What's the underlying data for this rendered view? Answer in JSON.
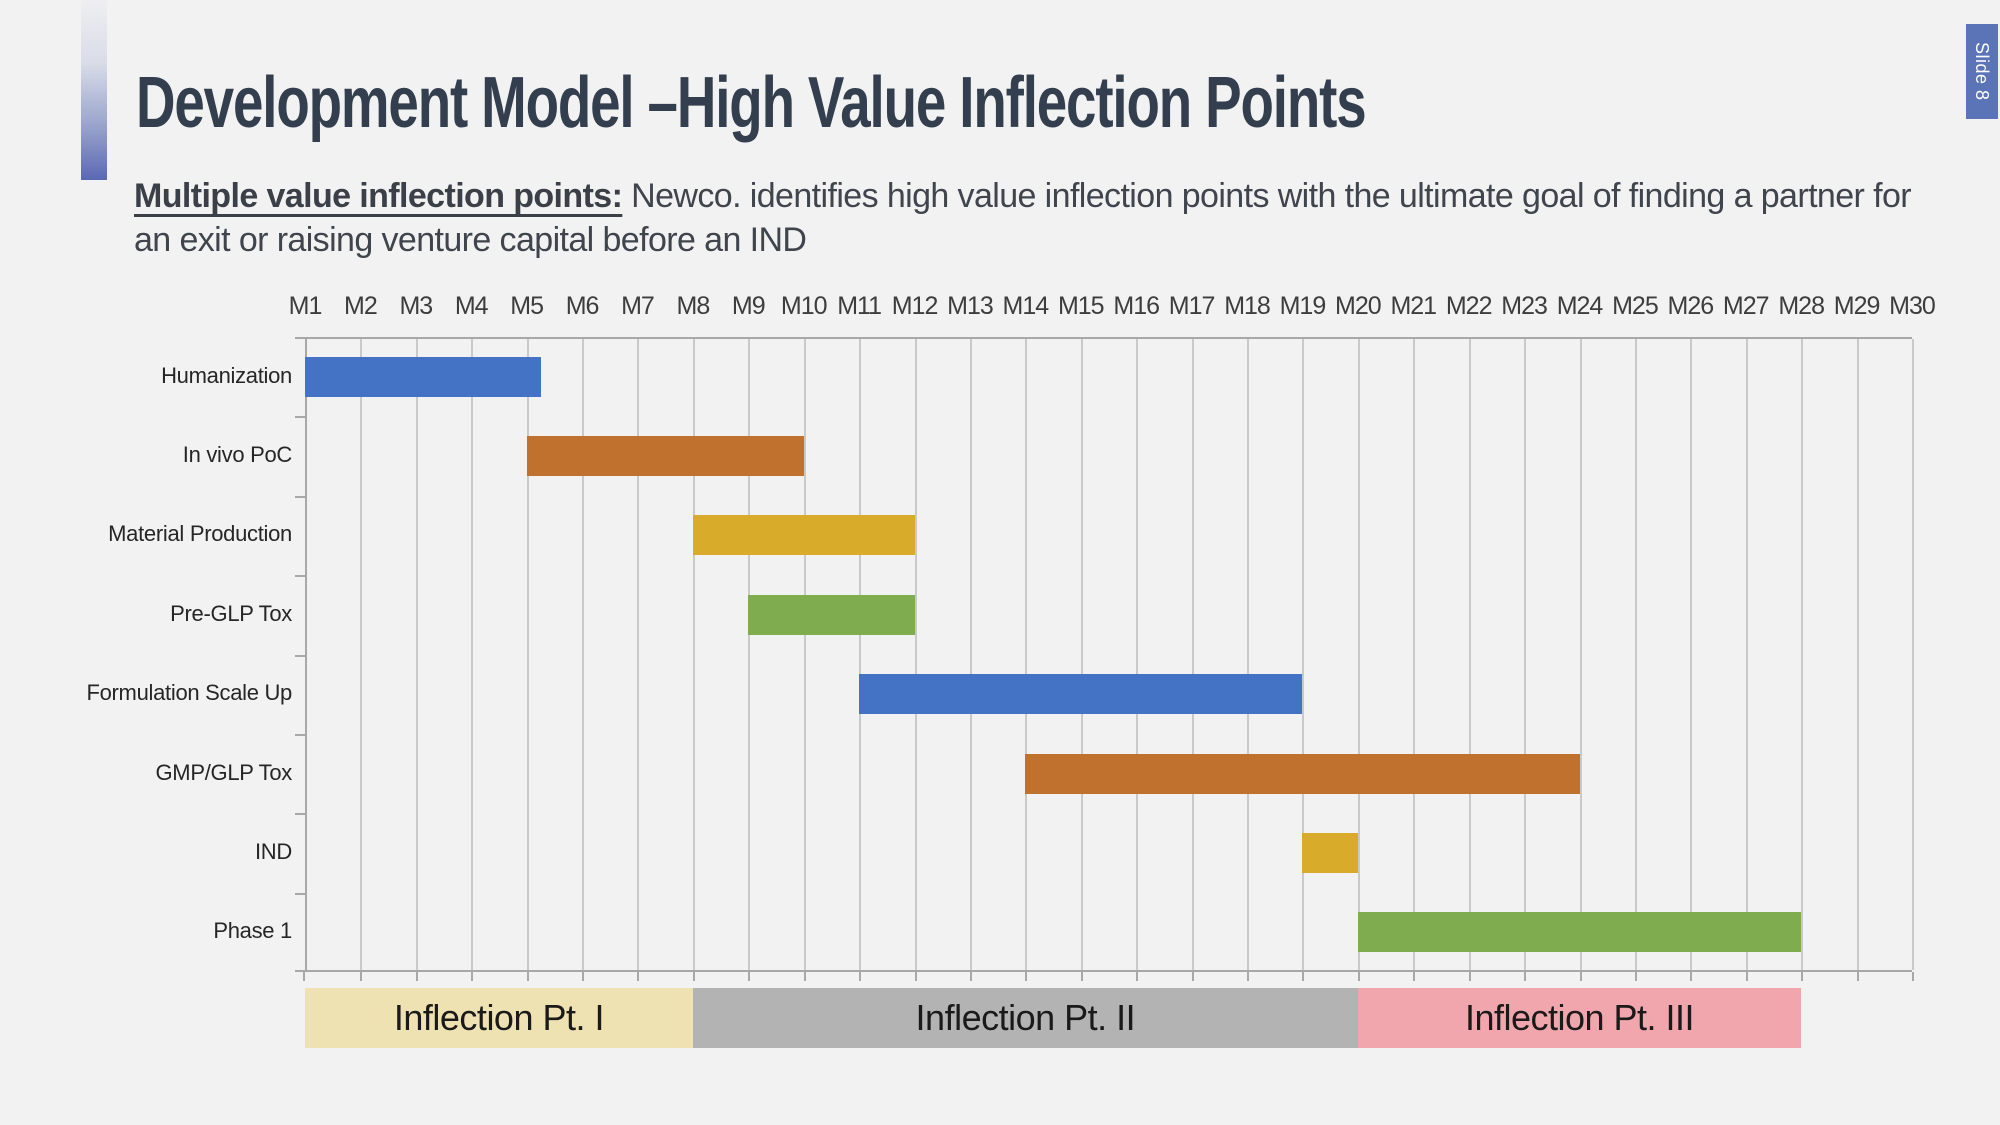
{
  "slide": {
    "badge": "Slide 8",
    "title": "Development Model –High Value Inflection Points",
    "subtitle_bold": "Multiple value inflection points:",
    "subtitle_rest": " Newco. identifies high value inflection points with the ultimate goal of finding a partner for an exit or raising venture capital before an IND"
  },
  "colors": {
    "background": "#F2F2F2",
    "title_text": "#333E4E",
    "body_text": "#3F444D",
    "badge_blue": "#5B74B8",
    "accent_gradient_top": "#EFEFF1",
    "accent_gradient_bottom": "#5A68B4",
    "gridline": "#C9C9C9",
    "axis": "#A8A8A8",
    "bar_blue": "#4472C4",
    "bar_orange": "#C0712E",
    "bar_gold": "#D8AB2B",
    "bar_green": "#7FAC4F",
    "band_tan": "#EFE2B2",
    "band_gray": "#B3B3B3",
    "band_pink": "#F0A6AC"
  },
  "chart_data": {
    "type": "bar",
    "subtype": "gantt",
    "x_range": [
      1,
      30
    ],
    "grid": true,
    "x_tick_labels": [
      "M1",
      "M2",
      "M3",
      "M4",
      "M5",
      "M6",
      "M7",
      "M8",
      "M9",
      "M10",
      "M11",
      "M12",
      "M13",
      "M14",
      "M15",
      "M16",
      "M17",
      "M18",
      "M19",
      "M20",
      "M21",
      "M22",
      "M23",
      "M24",
      "M25",
      "M26",
      "M27",
      "M28",
      "M29",
      "M30"
    ],
    "tasks": [
      {
        "label": "Humanization",
        "start": 1,
        "end": 5.25,
        "color": "#4472C4"
      },
      {
        "label": "In vivo PoC",
        "start": 5,
        "end": 10,
        "color": "#C0712E"
      },
      {
        "label": "Material Production",
        "start": 8,
        "end": 12,
        "color": "#D8AB2B"
      },
      {
        "label": "Pre-GLP Tox",
        "start": 9,
        "end": 12,
        "color": "#7FAC4F"
      },
      {
        "label": "Formulation Scale Up",
        "start": 11,
        "end": 19,
        "color": "#4472C4"
      },
      {
        "label": "GMP/GLP Tox",
        "start": 14,
        "end": 24,
        "color": "#C0712E"
      },
      {
        "label": "IND",
        "start": 19,
        "end": 20,
        "color": "#D8AB2B"
      },
      {
        "label": "Phase 1",
        "start": 20,
        "end": 28,
        "color": "#7FAC4F"
      }
    ],
    "phases": [
      {
        "label": "Inflection Pt. I",
        "start": 1,
        "end": 8,
        "color": "#EFE2B2"
      },
      {
        "label": "Inflection Pt. II",
        "start": 8,
        "end": 20,
        "color": "#B3B3B3"
      },
      {
        "label": "Inflection Pt. III",
        "start": 20,
        "end": 28,
        "color": "#F0A6AC"
      }
    ]
  }
}
